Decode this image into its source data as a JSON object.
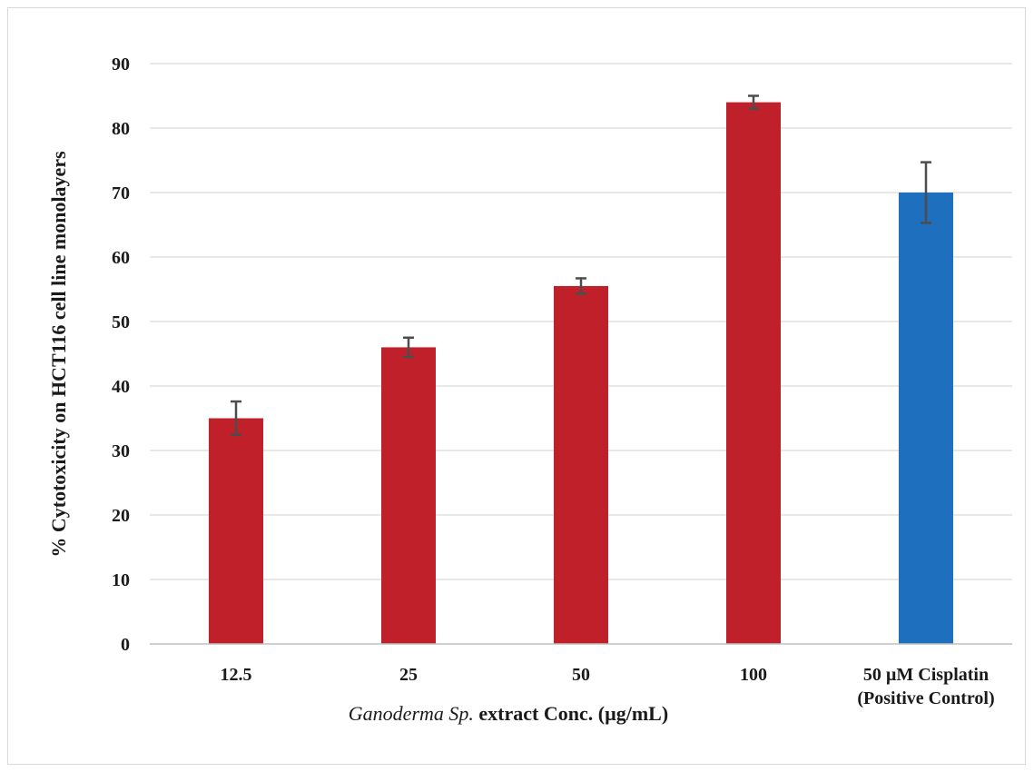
{
  "chart_data": {
    "type": "bar",
    "categories": [
      [
        "12.5"
      ],
      [
        "25"
      ],
      [
        "50"
      ],
      [
        "100"
      ],
      [
        "50 µM Cisplatin",
        "(Positive Control)"
      ]
    ],
    "values": [
      35,
      46,
      55.5,
      84,
      70
    ],
    "errors": [
      2.6,
      1.5,
      1.2,
      1.0,
      4.7
    ],
    "bar_colors": [
      "#c0202a",
      "#c0202a",
      "#c0202a",
      "#c0202a",
      "#1f6fbf"
    ],
    "ylim": [
      0,
      90
    ],
    "yticks": [
      "0",
      "10",
      "20",
      "30",
      "40",
      "50",
      "60",
      "70",
      "80",
      "90"
    ],
    "ylabel": "% Cytotoxicity on HCT116 cell line monolayers",
    "xlabel_italic": "Ganoderma Sp.",
    "xlabel_rest": " extract Conc. (µg/mL)",
    "grid": true
  }
}
